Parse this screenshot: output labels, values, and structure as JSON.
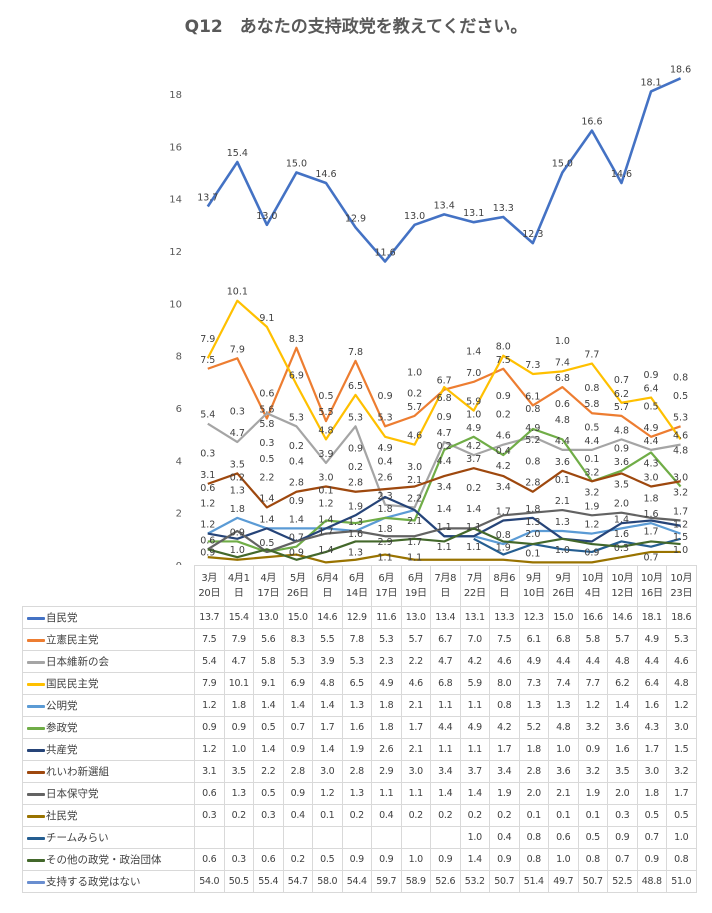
{
  "chart_data": {
    "type": "line",
    "title": "Q12　あなたの支持政党を教えてください。",
    "xlabel": "",
    "ylabel": "",
    "ylim": [
      0,
      18.6
    ],
    "yticks": [
      "0",
      "2",
      "4",
      "6",
      "8",
      "10",
      "12",
      "14",
      "16",
      "18"
    ],
    "grid": false,
    "legend": "table-below",
    "categories": [
      [
        "3月",
        "20日"
      ],
      [
        "4月1",
        "日"
      ],
      [
        "4月",
        "17日"
      ],
      [
        "5月",
        "26日"
      ],
      [
        "6月4",
        "日"
      ],
      [
        "6月",
        "14日"
      ],
      [
        "6月",
        "17日"
      ],
      [
        "6月",
        "19日"
      ],
      [
        "7月8",
        "日"
      ],
      [
        "7月",
        "22日"
      ],
      [
        "8月6",
        "日"
      ],
      [
        "9月",
        "10日"
      ],
      [
        "9月",
        "26日"
      ],
      [
        "10月",
        "4日"
      ],
      [
        "10月",
        "12日"
      ],
      [
        "10月",
        "16日"
      ],
      [
        "10月",
        "23日"
      ]
    ],
    "series": [
      {
        "name": "自民党",
        "color": "#4472C4",
        "plot": true,
        "values": [
          13.7,
          15.4,
          13.0,
          15.0,
          14.6,
          12.9,
          11.6,
          13.0,
          13.4,
          13.1,
          13.3,
          12.3,
          15.0,
          16.6,
          14.6,
          18.1,
          18.6
        ]
      },
      {
        "name": "立憲民主党",
        "color": "#ED7D31",
        "plot": true,
        "values": [
          7.5,
          7.9,
          5.6,
          8.3,
          5.5,
          7.8,
          5.3,
          5.7,
          6.7,
          7.0,
          7.5,
          6.1,
          6.8,
          5.8,
          5.7,
          4.9,
          5.3
        ]
      },
      {
        "name": "日本維新の会",
        "color": "#A5A5A5",
        "plot": true,
        "values": [
          5.4,
          4.7,
          5.8,
          5.3,
          3.9,
          5.3,
          2.3,
          2.2,
          4.7,
          4.2,
          4.6,
          4.9,
          4.4,
          4.4,
          4.8,
          4.4,
          4.6
        ]
      },
      {
        "name": "国民民主党",
        "color": "#FFC000",
        "plot": true,
        "values": [
          7.9,
          10.1,
          9.1,
          6.9,
          4.8,
          6.5,
          4.9,
          4.6,
          6.8,
          5.9,
          8.0,
          7.3,
          7.4,
          7.7,
          6.2,
          6.4,
          4.8
        ]
      },
      {
        "name": "公明党",
        "color": "#5B9BD5",
        "plot": true,
        "values": [
          1.2,
          1.8,
          1.4,
          1.4,
          1.4,
          1.3,
          1.8,
          2.1,
          1.1,
          1.1,
          0.8,
          1.3,
          1.3,
          1.2,
          1.4,
          1.6,
          1.2
        ]
      },
      {
        "name": "参政党",
        "color": "#70AD47",
        "plot": true,
        "values": [
          0.9,
          0.9,
          0.5,
          0.7,
          1.7,
          1.6,
          1.8,
          1.7,
          4.4,
          4.9,
          4.2,
          5.2,
          4.8,
          3.2,
          3.6,
          4.3,
          3.0
        ]
      },
      {
        "name": "共産党",
        "color": "#264478",
        "plot": true,
        "values": [
          1.2,
          1.0,
          1.4,
          0.9,
          1.4,
          1.9,
          2.6,
          2.1,
          1.1,
          1.1,
          1.7,
          1.8,
          1.0,
          0.9,
          1.6,
          1.7,
          1.5
        ]
      },
      {
        "name": "れいわ新選組",
        "color": "#9E480E",
        "plot": true,
        "values": [
          3.1,
          3.5,
          2.2,
          2.8,
          3.0,
          2.8,
          2.9,
          3.0,
          3.4,
          3.7,
          3.4,
          2.8,
          3.6,
          3.2,
          3.5,
          3.0,
          3.2
        ]
      },
      {
        "name": "日本保守党",
        "color": "#636363",
        "plot": true,
        "values": [
          0.6,
          1.3,
          0.5,
          0.9,
          1.2,
          1.3,
          1.1,
          1.1,
          1.4,
          1.4,
          1.9,
          2.0,
          2.1,
          1.9,
          2.0,
          1.8,
          1.7
        ]
      },
      {
        "name": "社民党",
        "color": "#997300",
        "plot": true,
        "values": [
          0.3,
          0.2,
          0.3,
          0.4,
          0.1,
          0.2,
          0.4,
          0.2,
          0.2,
          0.2,
          0.2,
          0.1,
          0.1,
          0.1,
          0.3,
          0.5,
          0.5
        ]
      },
      {
        "name": "チームみらい",
        "color": "#255E91",
        "plot": true,
        "values": [
          null,
          null,
          null,
          null,
          null,
          null,
          null,
          null,
          null,
          1.0,
          0.4,
          0.8,
          0.6,
          0.5,
          0.9,
          0.7,
          1.0
        ]
      },
      {
        "name": "その他の政党・政治団体",
        "color": "#43682B",
        "plot": true,
        "values": [
          0.6,
          0.3,
          0.6,
          0.2,
          0.5,
          0.9,
          0.9,
          1.0,
          0.9,
          1.4,
          0.9,
          0.8,
          1.0,
          0.8,
          0.7,
          0.9,
          0.8
        ]
      },
      {
        "name": "支持する政党はない",
        "color": "#698ED0",
        "plot": false,
        "values": [
          54.0,
          50.5,
          55.4,
          54.7,
          58.0,
          54.4,
          59.7,
          58.9,
          52.6,
          53.2,
          50.7,
          51.4,
          49.7,
          50.7,
          52.5,
          48.8,
          51.0
        ]
      }
    ]
  }
}
